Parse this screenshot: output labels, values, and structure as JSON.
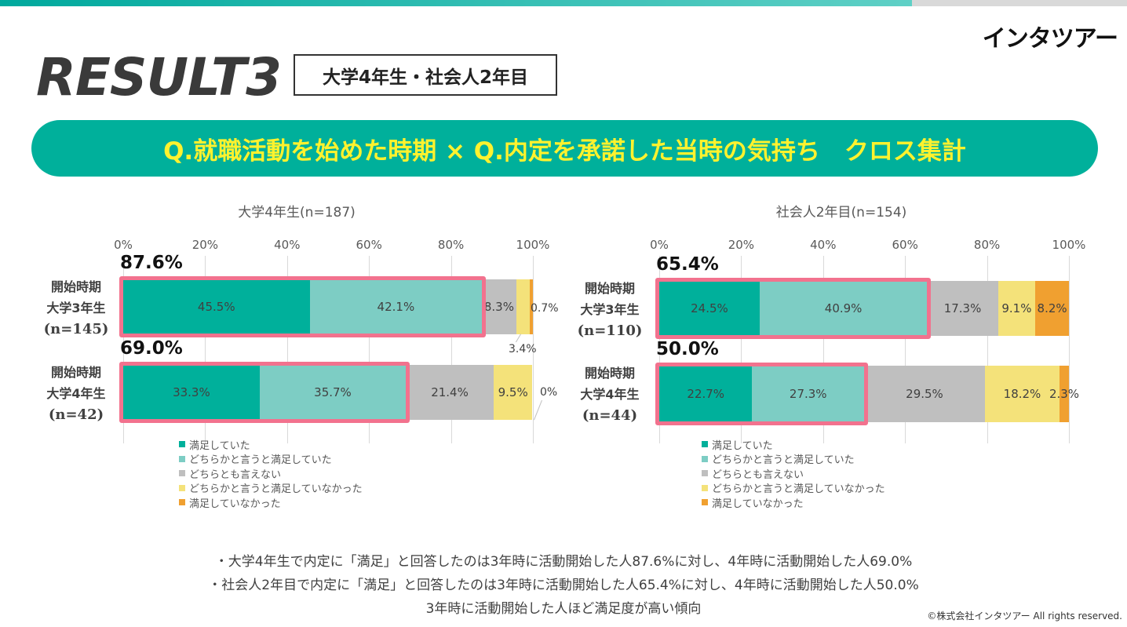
{
  "header": {
    "logo": "インタツアー",
    "result_title": "RESULT3",
    "tag": "大学4年生・社会人2年目",
    "question": "Q.就職活動を始めた時期 × Q.内定を承諾した当時の気持ち　クロス集計"
  },
  "colors": {
    "satisfied": "#00b09b",
    "somewhat_satisfied": "#7dcdc4",
    "neutral": "#bfbfbf",
    "somewhat_unsatisfied": "#f4e27a",
    "unsatisfied": "#f0a030",
    "highlight": "#f2728e"
  },
  "chart_data": [
    {
      "type": "bar",
      "stacked": true,
      "orientation": "horizontal",
      "title": "大学4年生(n=187)",
      "xlim": [
        0,
        100
      ],
      "ticks": [
        "0%",
        "20%",
        "40%",
        "60%",
        "80%",
        "100%"
      ],
      "categories": [
        {
          "line1": "開始時期",
          "line2": "大学3年生",
          "n": "(n=145)",
          "total": "87.6%"
        },
        {
          "line1": "開始時期",
          "line2": "大学4年生",
          "n": "(n=42)",
          "total": "69.0%"
        }
      ],
      "series": [
        {
          "name": "満足していた",
          "values": [
            45.5,
            33.3
          ],
          "labels": [
            "45.5%",
            "33.3%"
          ]
        },
        {
          "name": "どちらかと言うと満足していた",
          "values": [
            42.1,
            35.7
          ],
          "labels": [
            "42.1%",
            "35.7%"
          ]
        },
        {
          "name": "どちらとも言えない",
          "values": [
            8.3,
            21.4
          ],
          "labels": [
            "8.3%",
            "21.4%"
          ]
        },
        {
          "name": "どちらかと言うと満足していなかった",
          "values": [
            3.4,
            9.5
          ],
          "labels": [
            "3.4%",
            "9.5%"
          ]
        },
        {
          "name": "満足していなかった",
          "values": [
            0.7,
            0
          ],
          "labels": [
            "0.7%",
            "0%"
          ]
        }
      ]
    },
    {
      "type": "bar",
      "stacked": true,
      "orientation": "horizontal",
      "title": "社会人2年目(n=154)",
      "xlim": [
        0,
        100
      ],
      "ticks": [
        "0%",
        "20%",
        "40%",
        "60%",
        "80%",
        "100%"
      ],
      "categories": [
        {
          "line1": "開始時期",
          "line2": "大学3年生",
          "n": "(n=110)",
          "total": "65.4%"
        },
        {
          "line1": "開始時期",
          "line2": "大学4年生",
          "n": "(n=44)",
          "total": "50.0%"
        }
      ],
      "series": [
        {
          "name": "満足していた",
          "values": [
            24.5,
            22.7
          ],
          "labels": [
            "24.5%",
            "22.7%"
          ]
        },
        {
          "name": "どちらかと言うと満足していた",
          "values": [
            40.9,
            27.3
          ],
          "labels": [
            "40.9%",
            "27.3%"
          ]
        },
        {
          "name": "どちらとも言えない",
          "values": [
            17.3,
            29.5
          ],
          "labels": [
            "17.3%",
            "29.5%"
          ]
        },
        {
          "name": "どちらかと言うと満足していなかった",
          "values": [
            9.1,
            18.2
          ],
          "labels": [
            "9.1%",
            "18.2%"
          ]
        },
        {
          "name": "満足していなかった",
          "values": [
            8.2,
            2.3
          ],
          "labels": [
            "8.2%",
            "2.3%"
          ]
        }
      ]
    }
  ],
  "notes": [
    "・大学4年生で内定に「満足」と回答したのは3年時に活動開始した人87.6%に対し、4年時に活動開始した人69.0%",
    "・社会人2年目で内定に「満足」と回答したのは3年時に活動開始した人65.4%に対し、4年時に活動開始した人50.0%",
    "3年時に活動開始した人ほど満足度が高い傾向"
  ],
  "copyright": "©株式会社インタツアー All rights reserved."
}
